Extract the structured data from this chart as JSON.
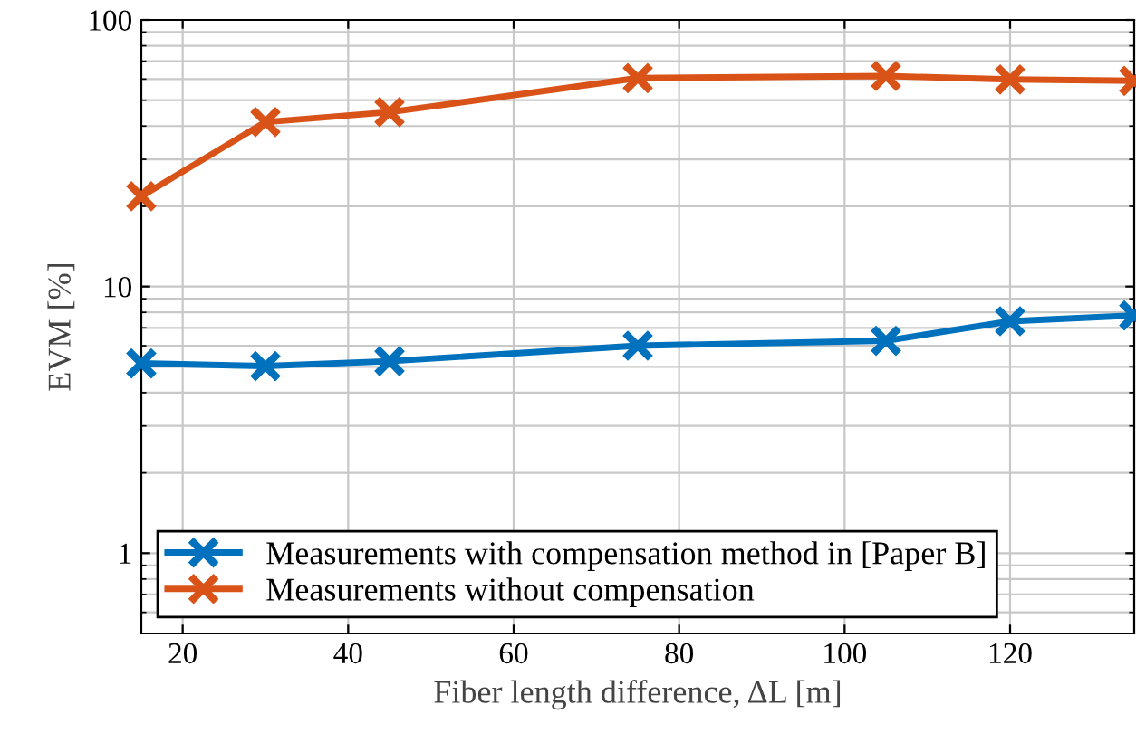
{
  "chart_data": {
    "type": "line",
    "xlabel": "Fiber length difference, ΔL [m]",
    "ylabel": "EVM [%]",
    "x": [
      15,
      30,
      45,
      75,
      105,
      120,
      135
    ],
    "series": [
      {
        "name": "Measurements with compensation method in [Paper B]",
        "color": "#0072bd",
        "values": [
          5.15,
          5.03,
          5.25,
          6.0,
          6.26,
          7.41,
          7.79
        ]
      },
      {
        "name": "Measurements without compensation",
        "color": "#d95319",
        "values": [
          21.8,
          41.4,
          45.1,
          60.5,
          61.6,
          59.8,
          59.1
        ]
      }
    ],
    "log": "y",
    "xlim": [
      15,
      135
    ],
    "xticks": [
      20,
      40,
      60,
      80,
      100,
      120
    ],
    "ylim": [
      0.5,
      100
    ],
    "yticks": [
      1,
      10,
      100
    ],
    "grid": true,
    "legend": "lower left",
    "marker": "cross",
    "line_style": "solid"
  }
}
